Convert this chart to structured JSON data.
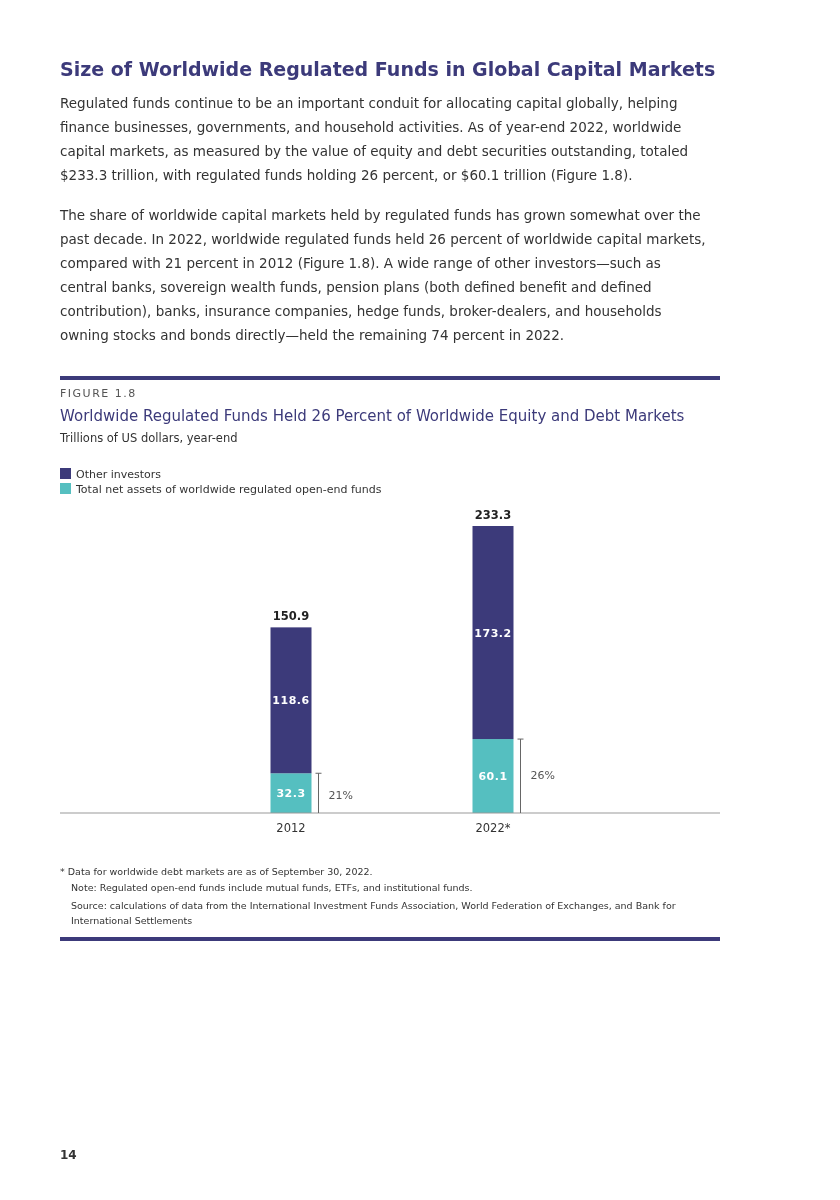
{
  "chart_data": {
    "type": "bar",
    "stacked": true,
    "data_labels": true,
    "legend": "top left",
    "title": "Worldwide Regulated Funds Held 26 Percent of Worldwide Equity and Debt Markets",
    "subtitle": "Trillions of US dollars, year-end",
    "categories": [
      "2012",
      "2022*"
    ],
    "series": [
      {
        "name": "Total net assets of worldwide regulated open-end funds",
        "color": "#55bfc0",
        "values": [
          32.3,
          60.1
        ]
      },
      {
        "name": "Other investors",
        "color": "#3c3a7a",
        "values": [
          118.6,
          173.2
        ]
      }
    ],
    "totals": [
      "150.9",
      "233.3"
    ],
    "annotations": [
      "Size of Worldwide Regulated Funds in Global Capital Markets",
      "Regulated funds continue to be an important conduit for allocating capital globally, helping finance businesses, governments, and household activities. As of year-end 2022, worldwide capital markets, as measured by the value of equity and debt securities outstanding, totaled $233.3 trillion, with regulated funds holding 26 percent, or $60.1 trillion (Figure 1.8).",
      "The share of worldwide capital markets held by regulated funds has grown somewhat over the past decade. In 2022, worldwide regulated funds held 26 percent of worldwide capital markets, compared with 21 percent in 2012 (Figure 1.8). A wide range of other investors—such as central banks, sovereign wealth funds, pension plans (both defined benefit and defined contribution), banks, insurance companies, hedge funds, broker-dealers, and households owning stocks and bonds directly—held the remaining 74 percent in 2022.",
      "FIGURE 1.8",
      "* Data for worldwide debt markets are as of September 30, 2022.",
      "Note: Regulated open-end funds include mutual funds, ETFs, and institutional funds.",
      "Source: calculations of data from the International Investment Funds Association, World Federation of Exchanges, and Bank for International Settlements",
      "14",
      "21%",
      "26%"
    ]
  }
}
